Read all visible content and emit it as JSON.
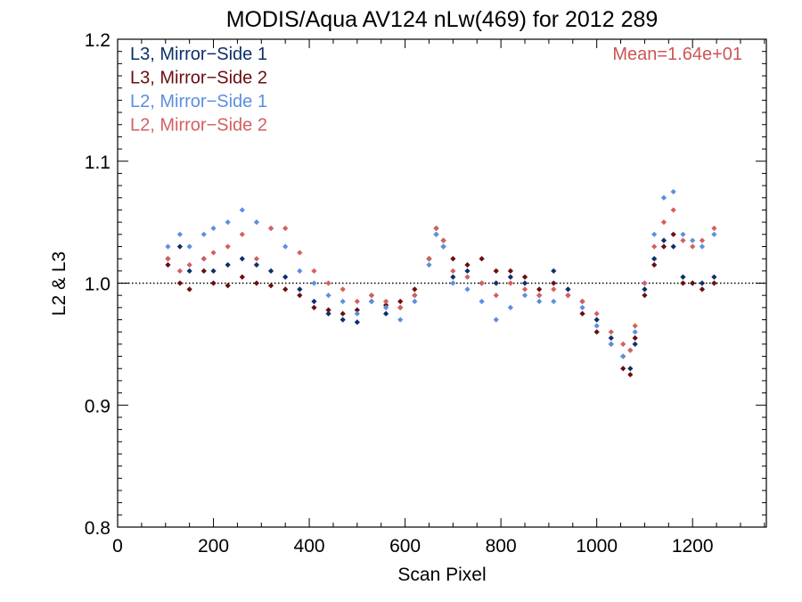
{
  "chart_data": {
    "type": "scatter",
    "title": "MODIS/Aqua AV124 nLw(469) for 2012 289",
    "xlabel": "Scan Pixel",
    "ylabel": "L2 & L3",
    "xlim": [
      0,
      1354
    ],
    "ylim": [
      0.8,
      1.2
    ],
    "xticks": [
      0,
      200,
      400,
      600,
      800,
      1000,
      1200
    ],
    "yticks": [
      0.8,
      0.9,
      1.0,
      1.1,
      1.2
    ],
    "xtick_labels": [
      "0",
      "200",
      "400",
      "600",
      "800",
      "1000",
      "1200"
    ],
    "ytick_labels": [
      "0.8",
      "0.9",
      "1.0",
      "1.1",
      "1.2"
    ],
    "reference_line": 1.0,
    "legend_position": "top-left",
    "annotation": "Mean=1.64e+01",
    "annotation_color": "#cc5555",
    "series": [
      {
        "name": "L3, Mirror−Side 1",
        "color": "#0d2f6b",
        "x": [
          105,
          130,
          150,
          180,
          200,
          230,
          260,
          290,
          320,
          350,
          380,
          410,
          440,
          470,
          500,
          530,
          560,
          590,
          620,
          650,
          665,
          680,
          700,
          730,
          760,
          790,
          820,
          850,
          880,
          910,
          940,
          970,
          1000,
          1030,
          1055,
          1070,
          1080,
          1100,
          1120,
          1140,
          1160,
          1180,
          1200,
          1220,
          1245
        ],
        "y": [
          1.02,
          1.03,
          1.01,
          1.02,
          1.01,
          1.015,
          1.02,
          1.015,
          1.01,
          1.005,
          0.995,
          0.985,
          0.975,
          0.97,
          0.968,
          0.985,
          0.975,
          0.98,
          0.99,
          1.02,
          1.045,
          1.035,
          1.005,
          1.01,
          1.0,
          1.0,
          1.005,
          1.0,
          0.99,
          1.01,
          0.995,
          0.985,
          0.97,
          0.955,
          0.94,
          0.93,
          0.95,
          0.995,
          1.02,
          1.035,
          1.03,
          1.005,
          1.0,
          1.0,
          1.005
        ]
      },
      {
        "name": "L3, Mirror−Side 2",
        "color": "#6b0d12",
        "x": [
          105,
          130,
          150,
          180,
          200,
          230,
          260,
          290,
          320,
          350,
          380,
          410,
          440,
          470,
          500,
          530,
          560,
          590,
          620,
          650,
          665,
          680,
          700,
          730,
          760,
          790,
          820,
          850,
          880,
          910,
          940,
          970,
          1000,
          1030,
          1055,
          1070,
          1080,
          1100,
          1120,
          1140,
          1160,
          1180,
          1200,
          1220,
          1245
        ],
        "y": [
          1.015,
          1.0,
          0.995,
          1.01,
          1.0,
          0.998,
          1.005,
          1.0,
          0.998,
          0.995,
          0.99,
          0.98,
          0.978,
          0.975,
          0.978,
          0.99,
          0.982,
          0.985,
          0.995,
          1.02,
          1.04,
          1.03,
          1.02,
          1.015,
          1.02,
          1.01,
          1.01,
          1.005,
          0.995,
          1.0,
          0.99,
          0.975,
          0.96,
          0.95,
          0.93,
          0.925,
          0.955,
          0.99,
          1.015,
          1.03,
          1.04,
          1.0,
          1.0,
          0.995,
          1.0
        ]
      },
      {
        "name": "L2, Mirror−Side 1",
        "color": "#5b8fe0",
        "x": [
          105,
          130,
          150,
          180,
          200,
          230,
          260,
          290,
          320,
          350,
          380,
          410,
          440,
          470,
          500,
          530,
          560,
          590,
          620,
          650,
          665,
          680,
          700,
          730,
          760,
          790,
          820,
          850,
          880,
          910,
          940,
          970,
          1000,
          1030,
          1055,
          1070,
          1080,
          1100,
          1120,
          1140,
          1160,
          1180,
          1200,
          1220,
          1245
        ],
        "y": [
          1.03,
          1.04,
          1.03,
          1.04,
          1.045,
          1.05,
          1.06,
          1.05,
          1.045,
          1.03,
          1.01,
          1.0,
          0.99,
          0.985,
          0.975,
          0.985,
          0.98,
          0.97,
          0.985,
          1.015,
          1.04,
          1.03,
          1.0,
          0.995,
          0.985,
          0.97,
          0.98,
          0.99,
          0.985,
          0.985,
          0.99,
          0.98,
          0.965,
          0.95,
          0.94,
          0.945,
          0.96,
          1.0,
          1.04,
          1.07,
          1.075,
          1.04,
          1.035,
          1.03,
          1.04
        ]
      },
      {
        "name": "L2, Mirror−Side 2",
        "color": "#d45f5f",
        "x": [
          105,
          130,
          150,
          180,
          200,
          230,
          260,
          290,
          320,
          350,
          380,
          410,
          440,
          470,
          500,
          530,
          560,
          590,
          620,
          650,
          665,
          680,
          700,
          730,
          760,
          790,
          820,
          850,
          880,
          910,
          940,
          970,
          1000,
          1030,
          1055,
          1070,
          1080,
          1100,
          1120,
          1140,
          1160,
          1180,
          1200,
          1220,
          1245
        ],
        "y": [
          1.02,
          1.01,
          1.015,
          1.02,
          1.025,
          1.03,
          1.04,
          1.02,
          1.045,
          1.045,
          1.025,
          1.01,
          1.0,
          0.995,
          0.985,
          0.99,
          0.985,
          0.98,
          0.99,
          1.02,
          1.045,
          1.035,
          1.01,
          1.005,
          1.0,
          0.99,
          1.0,
          0.995,
          0.99,
          0.995,
          0.99,
          0.985,
          0.975,
          0.96,
          0.95,
          0.945,
          0.965,
          1.0,
          1.03,
          1.05,
          1.06,
          1.035,
          1.03,
          1.035,
          1.045
        ]
      }
    ]
  }
}
